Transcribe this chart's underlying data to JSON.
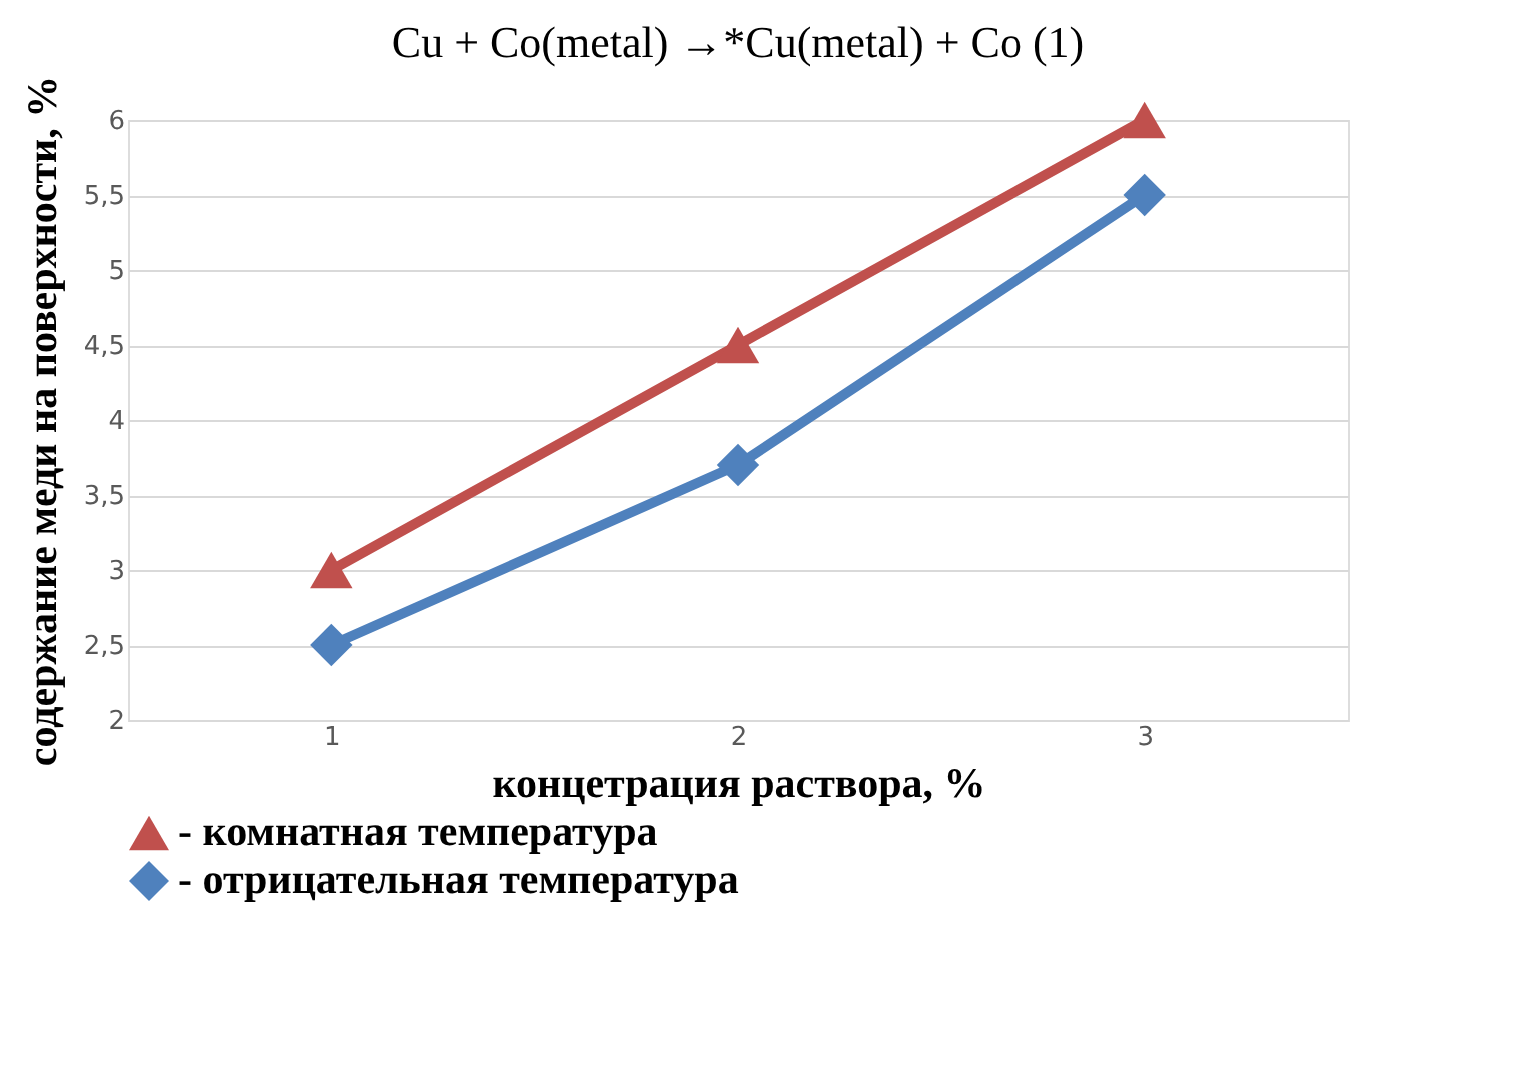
{
  "chart_data": {
    "type": "line",
    "title": "Cu + Co(metal) →*Cu(metal) + Co (1)",
    "xlabel": "концетрация раствора, %",
    "ylabel": "содержание меди на поверхности, %",
    "categories": [
      "1",
      "2",
      "3"
    ],
    "series": [
      {
        "name": "- комнатная температура",
        "color": "#c0504d",
        "marker": "triangle",
        "values": [
          3,
          4.5,
          6
        ]
      },
      {
        "name": "- отрицательная температура",
        "color": "#4f81bd",
        "marker": "diamond",
        "values": [
          2.5,
          3.7,
          5.5
        ]
      }
    ],
    "ylim": [
      2,
      6
    ],
    "yticks": [
      2,
      {
        "value": 2.5,
        "label": "2,5"
      },
      3,
      {
        "value": 3.5,
        "label": "3,5"
      },
      4,
      {
        "value": 4.5,
        "label": "4,5"
      },
      5,
      {
        "value": 5.5,
        "label": "5,5"
      },
      6
    ],
    "grid": "y",
    "legend": "bottom left",
    "line_style": "solid"
  }
}
